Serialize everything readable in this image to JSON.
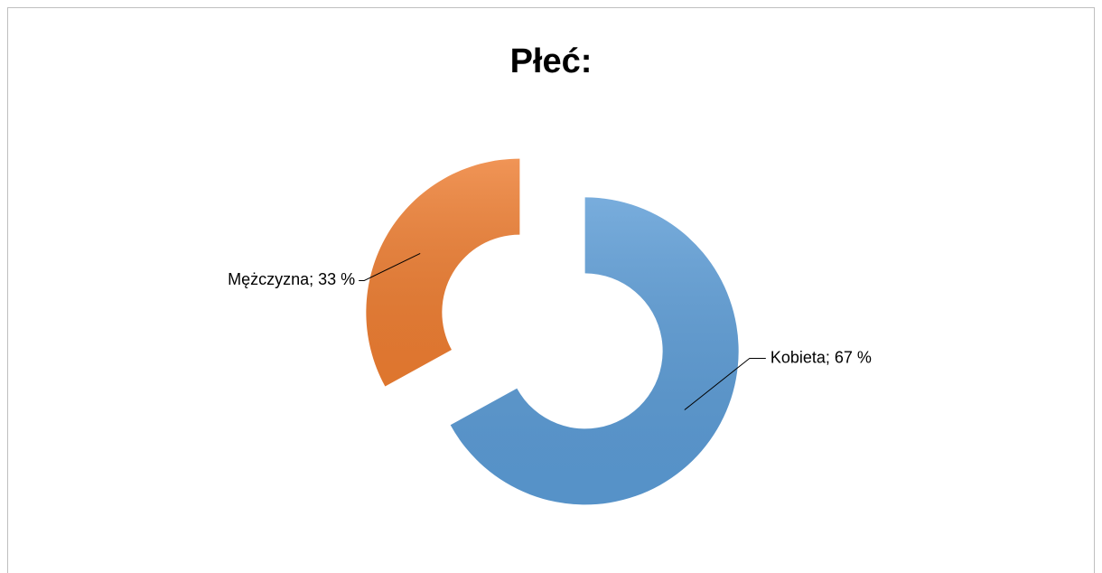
{
  "chart_data": {
    "type": "donut",
    "title": "Płeć:",
    "values": [
      67,
      33
    ],
    "value_labels": [
      "Kobieta; 67 %",
      "Mężczyzna; 33 %"
    ],
    "colors": [
      "#5b9bd5",
      "#ed7d31"
    ],
    "exploded": true
  }
}
